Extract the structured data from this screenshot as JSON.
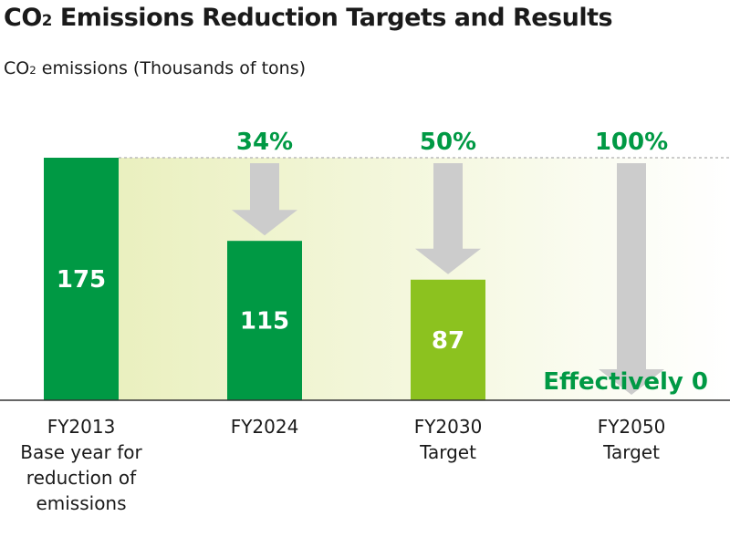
{
  "title": {
    "prefix": "CO",
    "subscript": "2",
    "rest": " Emissions Reduction Targets and Results"
  },
  "subtitle": {
    "prefix": "CO",
    "subscript": "2",
    "rest": " emissions (Thousands of tons)"
  },
  "colors": {
    "actual": "#009944",
    "target": "#8cc21f",
    "percent_text": "#009944",
    "arrow": "#cccccc",
    "band": "#eef3c6",
    "axis": "#333333"
  },
  "chart_data": {
    "type": "bar",
    "title": "CO2 Emissions Reduction Targets and Results",
    "ylabel": "CO2 emissions (Thousands of tons)",
    "ylim": [
      0,
      175
    ],
    "categories": [
      "FY2013",
      "FY2024",
      "FY2030",
      "FY2050"
    ],
    "category_sublabels": [
      [
        "Base year for",
        "reduction of",
        "emissions"
      ],
      [],
      [
        "Target"
      ],
      [
        "Target"
      ]
    ],
    "values": [
      175,
      115,
      87,
      0
    ],
    "value_labels": [
      "175",
      "115",
      "87",
      "Effectively 0"
    ],
    "bar_kind": [
      "actual",
      "actual",
      "target",
      "target"
    ],
    "reductions": [
      "",
      "34%",
      "50%",
      "100%"
    ]
  }
}
